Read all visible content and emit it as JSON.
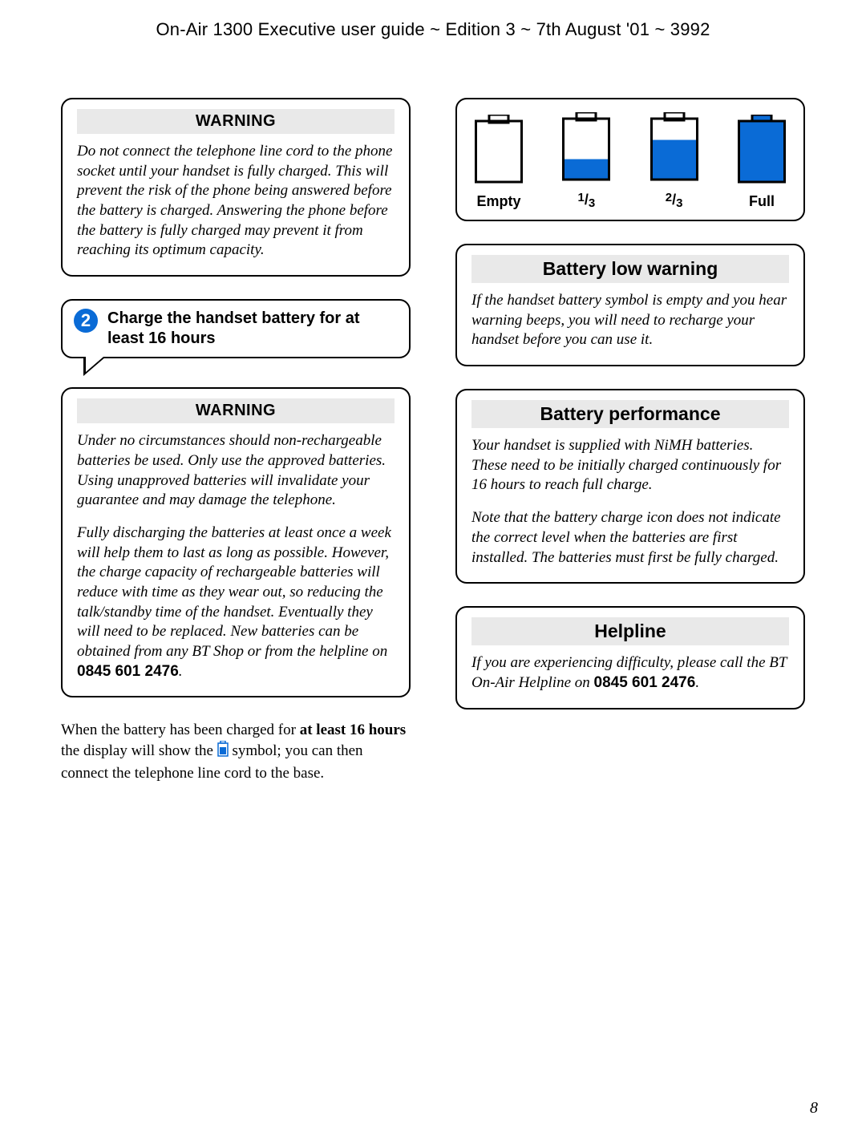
{
  "header": "On-Air 1300 Executive user guide ~ Edition 3 ~ 7th August '01 ~ 3992",
  "page_number": "8",
  "colors": {
    "accent_blue": "#0a6bd6",
    "band_grey": "#e9e9e9",
    "black": "#000000",
    "white": "#ffffff"
  },
  "left": {
    "warning1": {
      "title": "WARNING",
      "text": "Do not connect the telephone line cord to the phone socket until your handset is fully charged. This will prevent the risk of the phone being answered before the battery is charged. Answering the phone before the battery is fully charged may prevent it from reaching its optimum capacity."
    },
    "callout": {
      "badge": "2",
      "text": "Charge the handset battery for at least 16 hours"
    },
    "warning2": {
      "title": "WARNING",
      "p1": "Under no circumstances should non-rechargeable batteries be used. Only use the approved batteries. Using unapproved batteries will invalidate your guarantee and may damage the telephone.",
      "p2_a": "Fully discharging the batteries at least once a week will help them to last as long as possible. However, the charge capacity of rechargeable batteries will reduce with time as they wear out, so reducing the talk/standby time of the handset. Eventually they will need to be replaced. New batteries can be obtained from any BT Shop or from the helpline on ",
      "p2_num": "0845 601 2476",
      "p2_b": "."
    },
    "body": {
      "a": "When the battery has been charged for ",
      "bold": "at least 16 hours",
      "b": " the display will show the ",
      "c": " symbol; you can then connect the telephone line cord to the base."
    }
  },
  "right": {
    "battery_levels": {
      "items": [
        {
          "label": "Empty",
          "fill_ratio": 0.0
        },
        {
          "label": "1/3",
          "fill_ratio": 0.33
        },
        {
          "label": "2/3",
          "fill_ratio": 0.66
        },
        {
          "label": "Full",
          "fill_ratio": 1.0
        }
      ],
      "icon": {
        "width": 60,
        "height": 88,
        "stroke": "#000000",
        "stroke_width": 3,
        "fill_color": "#0a6bd6",
        "body_height": 76,
        "nub_width": 24,
        "nub_height": 8
      }
    },
    "low": {
      "title": "Battery low warning",
      "text": "If the handset battery symbol is empty and you hear warning beeps, you will need to recharge your handset before you can use it."
    },
    "perf": {
      "title": "Battery performance",
      "p1": "Your handset is supplied with NiMH batteries. These need to be initially charged continuously for 16 hours to reach full charge.",
      "p2": "Note that the battery charge icon does not indicate the correct level when the batteries are first installed. The batteries must first be fully charged."
    },
    "help": {
      "title": "Helpline",
      "a": "If you are experiencing difficulty, please call the BT On-Air Helpline on ",
      "num": "0845 601 2476",
      "b": "."
    }
  }
}
